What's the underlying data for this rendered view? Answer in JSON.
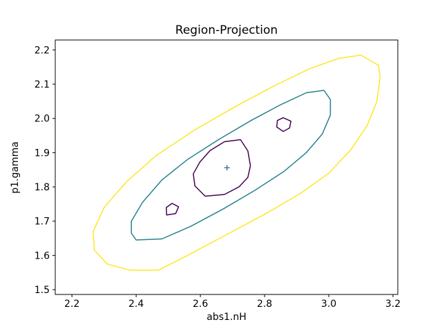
{
  "chart_data": {
    "type": "contour",
    "title": "Region-Projection",
    "xlabel": "abs1.nH",
    "ylabel": "p1.gamma",
    "xlim": [
      2.148,
      3.215
    ],
    "ylim": [
      1.486,
      2.229
    ],
    "x_ticks": [
      2.2,
      2.4,
      2.6,
      2.8,
      3.0,
      3.2
    ],
    "y_ticks": [
      1.5,
      1.6,
      1.7,
      1.8,
      1.9,
      2.0,
      2.1,
      2.2
    ],
    "grid": false,
    "frame_color": "#000000",
    "best_fit_point": {
      "x": 2.683,
      "y": 1.856,
      "marker": "+",
      "color": "#31688e"
    },
    "contours": [
      {
        "name": "contour-level-1",
        "color": "#440154",
        "paths": [
          [
            [
              2.615,
              1.773
            ],
            [
              2.675,
              1.778
            ],
            [
              2.72,
              1.8
            ],
            [
              2.748,
              1.828
            ],
            [
              2.756,
              1.862
            ],
            [
              2.748,
              1.905
            ],
            [
              2.725,
              1.938
            ],
            [
              2.675,
              1.932
            ],
            [
              2.63,
              1.906
            ],
            [
              2.598,
              1.872
            ],
            [
              2.578,
              1.838
            ],
            [
              2.583,
              1.803
            ]
          ],
          [
            [
              2.495,
              1.718
            ],
            [
              2.523,
              1.722
            ],
            [
              2.532,
              1.742
            ],
            [
              2.512,
              1.752
            ],
            [
              2.494,
              1.74
            ]
          ],
          [
            [
              2.838,
              1.975
            ],
            [
              2.858,
              1.962
            ],
            [
              2.878,
              1.972
            ],
            [
              2.882,
              1.992
            ],
            [
              2.858,
              2.002
            ],
            [
              2.84,
              1.994
            ]
          ]
        ]
      },
      {
        "name": "contour-level-2",
        "color": "#26828e",
        "paths": [
          [
            [
              2.4,
              1.645
            ],
            [
              2.48,
              1.648
            ],
            [
              2.57,
              1.685
            ],
            [
              2.67,
              1.735
            ],
            [
              2.77,
              1.79
            ],
            [
              2.86,
              1.845
            ],
            [
              2.93,
              1.9
            ],
            [
              2.98,
              1.955
            ],
            [
              3.005,
              2.01
            ],
            [
              3.005,
              2.055
            ],
            [
              2.985,
              2.082
            ],
            [
              2.93,
              2.075
            ],
            [
              2.85,
              2.04
            ],
            [
              2.76,
              1.995
            ],
            [
              2.66,
              1.94
            ],
            [
              2.56,
              1.88
            ],
            [
              2.48,
              1.82
            ],
            [
              2.42,
              1.755
            ],
            [
              2.385,
              1.7
            ],
            [
              2.385,
              1.665
            ]
          ]
        ]
      },
      {
        "name": "contour-level-3",
        "color": "#fde725",
        "paths": [
          [
            [
              2.38,
              1.557
            ],
            [
              2.47,
              1.557
            ],
            [
              2.56,
              1.6
            ],
            [
              2.68,
              1.66
            ],
            [
              2.8,
              1.72
            ],
            [
              2.91,
              1.78
            ],
            [
              3.0,
              1.84
            ],
            [
              3.07,
              1.91
            ],
            [
              3.12,
              1.98
            ],
            [
              3.15,
              2.05
            ],
            [
              3.16,
              2.12
            ],
            [
              3.155,
              2.155
            ],
            [
              3.1,
              2.185
            ],
            [
              3.03,
              2.175
            ],
            [
              2.94,
              2.145
            ],
            [
              2.83,
              2.095
            ],
            [
              2.71,
              2.035
            ],
            [
              2.58,
              1.965
            ],
            [
              2.46,
              1.89
            ],
            [
              2.37,
              1.815
            ],
            [
              2.3,
              1.74
            ],
            [
              2.266,
              1.67
            ],
            [
              2.27,
              1.615
            ],
            [
              2.31,
              1.575
            ]
          ]
        ]
      }
    ]
  }
}
